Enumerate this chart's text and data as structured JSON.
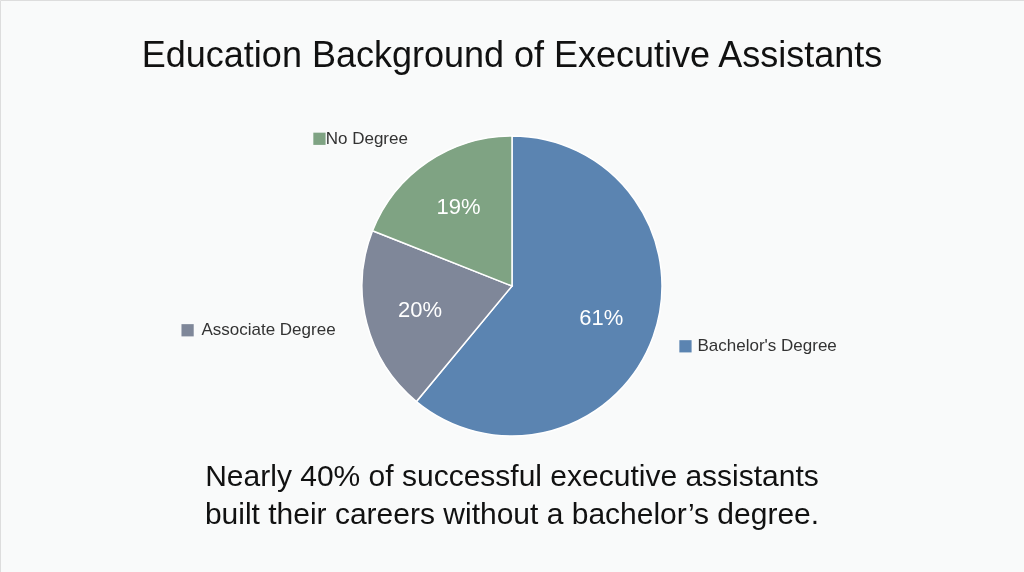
{
  "chart_data": {
    "type": "pie",
    "title": "Education Background of Executive Assistants",
    "categories": [
      "Bachelor's Degree",
      "Associate Degree",
      "No Degree"
    ],
    "values": [
      61,
      20,
      19
    ],
    "colors": [
      "#5b84b1",
      "#7f8799",
      "#7fa383"
    ],
    "value_labels": [
      "61%",
      "20%",
      "19%"
    ],
    "legend": "left",
    "annotations": [
      "Nearly 40% of successful executive assistants\nbuilt their careers without a bachelor’s degree."
    ]
  }
}
